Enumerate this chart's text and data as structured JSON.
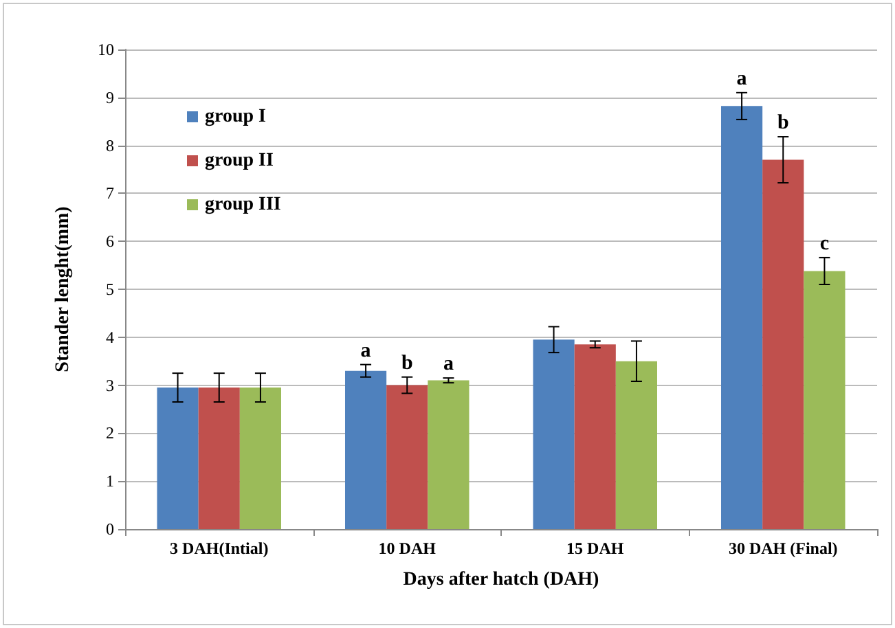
{
  "chart_data": {
    "type": "bar",
    "xlabel": "Days after hatch (DAH)",
    "ylabel": "Stander lenght(mm)",
    "categories": [
      "3 DAH(Intial)",
      "10 DAH",
      "15 DAH",
      "30 DAH (Final)"
    ],
    "series": [
      {
        "name": "group I",
        "color": "#4f81bd",
        "values": [
          2.95,
          3.3,
          3.95,
          8.82
        ],
        "errors": [
          0.3,
          0.13,
          0.27,
          0.28
        ],
        "value_labels": [
          null,
          "a",
          null,
          "a"
        ]
      },
      {
        "name": "group II",
        "color": "#c0504d",
        "values": [
          2.95,
          3.0,
          3.85,
          7.7
        ],
        "errors": [
          0.3,
          0.17,
          0.07,
          0.48
        ],
        "value_labels": [
          null,
          "b",
          null,
          "b"
        ]
      },
      {
        "name": "group III",
        "color": "#9bbb59",
        "values": [
          2.95,
          3.1,
          3.5,
          5.38
        ],
        "errors": [
          0.3,
          0.05,
          0.42,
          0.28
        ],
        "value_labels": [
          null,
          "a",
          null,
          "c"
        ]
      }
    ],
    "ylim": [
      0,
      10
    ],
    "yticks": [
      0,
      1,
      2,
      3,
      4,
      5,
      6,
      7,
      8,
      9,
      10
    ],
    "grid": "y",
    "legend": "top left"
  }
}
